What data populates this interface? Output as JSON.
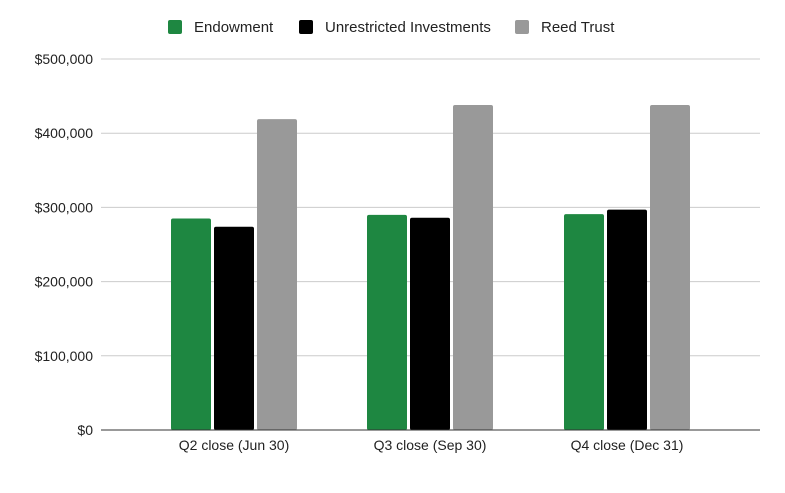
{
  "chart_data": {
    "type": "bar",
    "title": "",
    "xlabel": "",
    "ylabel": "",
    "categories": [
      "Q2 close (Jun 30)",
      "Q3 close (Sep 30)",
      "Q4 close (Dec 31)"
    ],
    "series": [
      {
        "name": "Endowment",
        "color": "#1e8741",
        "values": [
          285000,
          290000,
          291000
        ]
      },
      {
        "name": "Unrestricted Investments",
        "color": "#000000",
        "values": [
          274000,
          286000,
          297000
        ]
      },
      {
        "name": "Reed Trust",
        "color": "#999999",
        "values": [
          419000,
          438000,
          438000
        ]
      }
    ],
    "ylim": [
      0,
      500000
    ],
    "yticks": [
      0,
      100000,
      200000,
      300000,
      400000,
      500000
    ],
    "ytick_labels": [
      "$0",
      "$100,000",
      "$200,000",
      "$300,000",
      "$400,000",
      "$500,000"
    ],
    "grid": true,
    "legend_position": "top"
  }
}
